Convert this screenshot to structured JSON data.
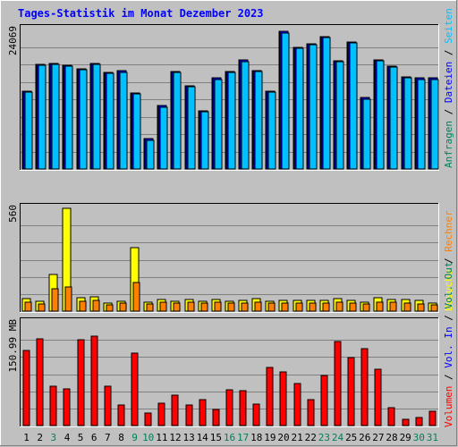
{
  "title": "Tages-Statistik im Monat Dezember 2023",
  "colors": {
    "background": "#c0c0c0",
    "title": "#0000ff",
    "hits": "#00805c",
    "files": "#0000ff",
    "pages": "#00c0ff",
    "visits": "#ffff00",
    "sites": "#ff8000",
    "volume": "#ff0000",
    "weekend_label": "#00805c",
    "weekday_label": "#000000"
  },
  "right_labels": {
    "panel1": [
      {
        "text": "Anfragen",
        "color": "#00805c"
      },
      {
        "text": " / ",
        "color": "#000000"
      },
      {
        "text": "Dateien",
        "color": "#0000ff"
      },
      {
        "text": " / ",
        "color": "#000000"
      },
      {
        "text": "Seiten",
        "color": "#00c0ff"
      }
    ],
    "panel2": [
      {
        "text": "Besuche",
        "color": "#ffff00"
      },
      {
        "text": " / ",
        "color": "#000000"
      },
      {
        "text": "Rechner",
        "color": "#ff8000"
      }
    ],
    "panel3": [
      {
        "text": "Volumen",
        "color": "#ff0000"
      },
      {
        "text": " / ",
        "color": "#000000"
      },
      {
        "text": "Vol. In",
        "color": "#0000ff"
      },
      {
        "text": " / ",
        "color": "#000000"
      },
      {
        "text": "Vol. Out",
        "color": "#00805c"
      }
    ],
    "separator": " / "
  },
  "chart_data": [
    {
      "type": "bar",
      "panel": "requests",
      "ylabel": "24069",
      "ymax": 24069,
      "categories": [
        "1",
        "2",
        "3",
        "4",
        "5",
        "6",
        "7",
        "8",
        "9",
        "10",
        "11",
        "12",
        "13",
        "14",
        "15",
        "16",
        "17",
        "18",
        "19",
        "20",
        "21",
        "22",
        "23",
        "24",
        "25",
        "26",
        "27",
        "28",
        "29",
        "30",
        "31"
      ],
      "weekend_days": [
        3,
        9,
        10,
        16,
        17,
        23,
        24,
        30,
        31
      ],
      "series": [
        {
          "name": "Anfragen",
          "values": [
            13500,
            18100,
            18200,
            17900,
            17300,
            18200,
            16700,
            16900,
            13100,
            5200,
            10900,
            16800,
            14400,
            10100,
            15700,
            16800,
            18800,
            17000,
            13400,
            23700,
            21000,
            21600,
            22900,
            18700,
            21900,
            12300,
            18800,
            17800,
            15900,
            15700,
            15700
          ]
        },
        {
          "name": "Dateien",
          "values": [
            13500,
            18100,
            18200,
            17900,
            17300,
            18200,
            16700,
            16900,
            13100,
            5200,
            10900,
            16800,
            14400,
            10100,
            15700,
            16800,
            18800,
            17000,
            13400,
            23700,
            21000,
            21600,
            22900,
            18700,
            21900,
            12300,
            18800,
            17800,
            15900,
            15700,
            15700
          ]
        },
        {
          "name": "Seiten",
          "values": [
            13200,
            17900,
            18000,
            17700,
            17100,
            18000,
            16500,
            16700,
            12900,
            5000,
            10700,
            16600,
            14200,
            9900,
            15500,
            16600,
            18500,
            16800,
            13200,
            23400,
            20800,
            21400,
            22700,
            18500,
            21700,
            12100,
            18600,
            17600,
            15700,
            15500,
            15500
          ]
        }
      ]
    },
    {
      "type": "bar",
      "panel": "visits",
      "ylabel": "560",
      "ymax": 560,
      "categories": [
        "1",
        "2",
        "3",
        "4",
        "5",
        "6",
        "7",
        "8",
        "9",
        "10",
        "11",
        "12",
        "13",
        "14",
        "15",
        "16",
        "17",
        "18",
        "19",
        "20",
        "21",
        "22",
        "23",
        "24",
        "25",
        "26",
        "27",
        "28",
        "29",
        "30",
        "31"
      ],
      "series": [
        {
          "name": "Besuche",
          "values": [
            70,
            55,
            200,
            560,
            75,
            80,
            45,
            55,
            345,
            50,
            65,
            55,
            65,
            55,
            65,
            55,
            60,
            70,
            55,
            60,
            60,
            60,
            60,
            70,
            60,
            50,
            75,
            65,
            65,
            60,
            45
          ]
        },
        {
          "name": "Rechner",
          "values": [
            50,
            40,
            120,
            130,
            55,
            60,
            35,
            45,
            155,
            40,
            50,
            45,
            50,
            45,
            50,
            45,
            45,
            50,
            45,
            45,
            45,
            45,
            45,
            50,
            45,
            40,
            50,
            50,
            45,
            40,
            35
          ]
        }
      ]
    },
    {
      "type": "bar",
      "panel": "volume",
      "ylabel": "150.99 MB",
      "ymax": 150.99,
      "unit": "MB",
      "categories": [
        "1",
        "2",
        "3",
        "4",
        "5",
        "6",
        "7",
        "8",
        "9",
        "10",
        "11",
        "12",
        "13",
        "14",
        "15",
        "16",
        "17",
        "18",
        "19",
        "20",
        "21",
        "22",
        "23",
        "24",
        "25",
        "26",
        "27",
        "28",
        "29",
        "30",
        "31"
      ],
      "series": [
        {
          "name": "Volumen",
          "values": [
            110,
            128,
            58,
            54,
            126,
            131,
            58,
            30,
            107,
            19,
            33,
            44,
            30,
            38,
            23,
            52,
            51,
            32,
            85,
            79,
            62,
            38,
            73,
            123,
            100,
            113,
            83,
            26,
            9,
            12,
            21
          ]
        }
      ]
    }
  ]
}
